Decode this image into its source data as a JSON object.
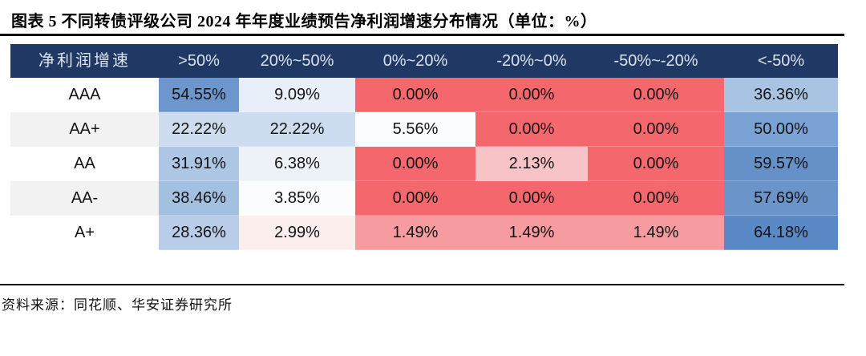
{
  "figure": {
    "title": "图表 5  不同转债评级公司 2024 年年度业绩预告净利润增速分布情况（单位：%）",
    "source": "资料来源：同花顺、华安证券研究所"
  },
  "colors": {
    "header_bg": "#1F3864",
    "header_text": "#D9E3F2",
    "row_label_alt_bg": "#F2F2F2",
    "rule": "#101010",
    "heat_red": "#F4676D",
    "heat_blue_max": "#5B89C5"
  },
  "chart_data": {
    "type": "heatmap",
    "title": "不同转债评级公司2024年年度业绩预告净利润增速分布情况",
    "unit": "%",
    "columns": [
      "净利润增速",
      ">50%",
      "20%~50%",
      "0%~20%",
      "-20%~0%",
      "-50%~-20%",
      "<-50%"
    ],
    "rows": [
      {
        "label": "AAA",
        "values": [
          "54.55%",
          "9.09%",
          "0.00%",
          "0.00%",
          "0.00%",
          "36.36%"
        ],
        "cell_colors": [
          "#6D96CC",
          "#E9EFF8",
          "#F4676D",
          "#F4676D",
          "#F4676D",
          "#A9C4E3"
        ]
      },
      {
        "label": "AA+",
        "values": [
          "22.22%",
          "22.22%",
          "5.56%",
          "0.00%",
          "0.00%",
          "50.00%"
        ],
        "cell_colors": [
          "#CDDCEE",
          "#CDDCEE",
          "#FBFCFE",
          "#F4676D",
          "#F4676D",
          "#7BA2D4"
        ]
      },
      {
        "label": "AA",
        "values": [
          "31.91%",
          "6.38%",
          "0.00%",
          "2.13%",
          "0.00%",
          "59.57%"
        ],
        "cell_colors": [
          "#ADC6E3",
          "#EDF2F9",
          "#F4676D",
          "#F8C3C6",
          "#F4676D",
          "#6590C8"
        ]
      },
      {
        "label": "AA-",
        "values": [
          "38.46%",
          "3.85%",
          "0.00%",
          "0.00%",
          "0.00%",
          "57.69%"
        ],
        "cell_colors": [
          "#A4C0E1",
          "#FBFCFE",
          "#F4676D",
          "#F4676D",
          "#F4676D",
          "#6B94CA"
        ]
      },
      {
        "label": "A+",
        "values": [
          "28.36%",
          "2.99%",
          "1.49%",
          "1.49%",
          "1.49%",
          "64.18%"
        ],
        "cell_colors": [
          "#B9CDE8",
          "#FDEEEE",
          "#F69CA1",
          "#F69CA1",
          "#F69CA1",
          "#5B89C5"
        ]
      }
    ]
  }
}
